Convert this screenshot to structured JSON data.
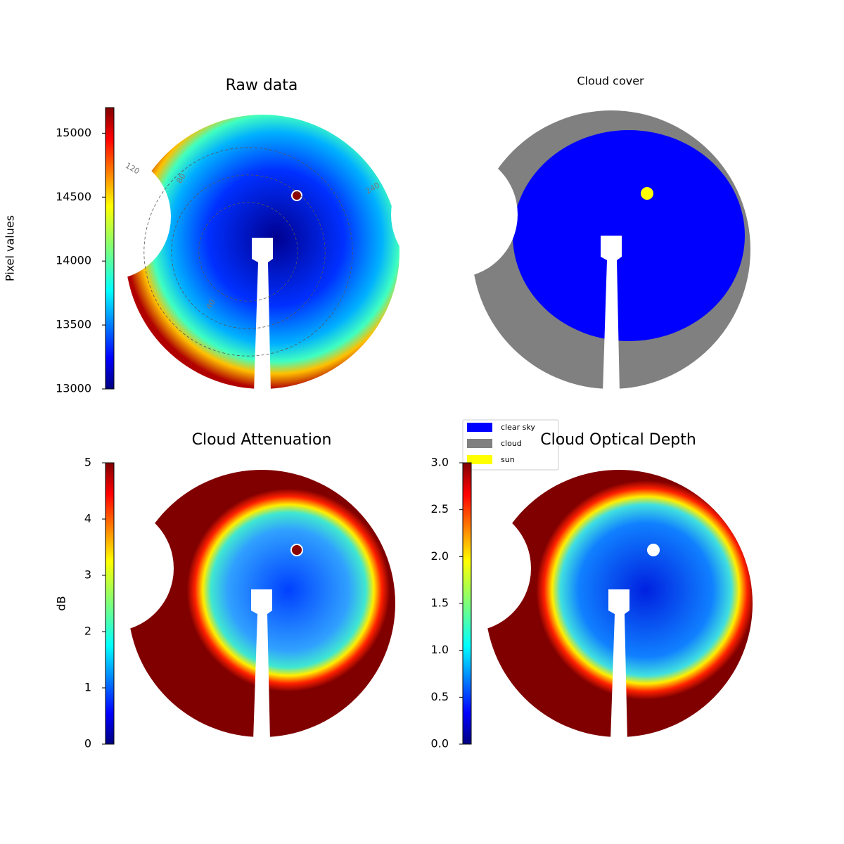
{
  "chart_data": [
    {
      "type": "image",
      "title": "Raw data",
      "colormap": "jet",
      "ylabel": "Pixel values",
      "ylim": [
        13000,
        15200
      ],
      "yticks": [
        13000,
        13500,
        14000,
        14500,
        15000
      ],
      "annotations": [
        "120",
        "80",
        "240",
        "40"
      ]
    },
    {
      "type": "image",
      "title": "Cloud cover",
      "legend": [
        {
          "name": "clear sky",
          "color": "#0000ff"
        },
        {
          "name": "cloud",
          "color": "#808080"
        },
        {
          "name": "sun",
          "color": "#ffff00"
        }
      ]
    },
    {
      "type": "image",
      "title": "Cloud Attenuation",
      "colormap": "jet",
      "ylabel": "dB",
      "ylim": [
        0,
        5
      ],
      "yticks": [
        0,
        1,
        2,
        3,
        4,
        5
      ]
    },
    {
      "type": "image",
      "title": "Cloud Optical Depth",
      "colormap": "jet",
      "ylim": [
        0,
        3
      ],
      "yticks": [
        {
          "value": 0,
          "label": "0.0"
        },
        0.5,
        {
          "value": 1,
          "label": "1.0"
        },
        1.5,
        {
          "value": 2,
          "label": "2.0"
        },
        2.5,
        {
          "value": 3,
          "label": "3.0"
        }
      ]
    }
  ]
}
